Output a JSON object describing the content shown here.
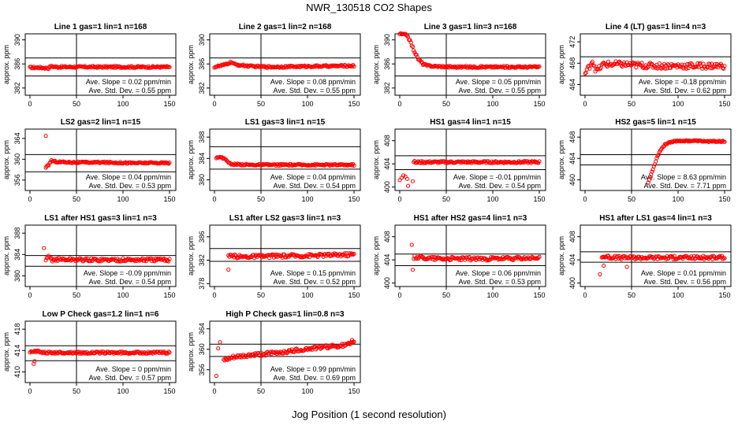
{
  "figure": {
    "title": "NWR_130518  CO2 Shapes",
    "xlabel": "Jog Position (1 second resolution)"
  },
  "chart_data": [
    {
      "type": "scatter",
      "title": "Line 1 gas=1 lin=1 n=168",
      "ylabel": "approx. ppm",
      "xlim": [
        0,
        150
      ],
      "xticks": [
        0,
        50,
        100,
        150
      ],
      "ylim": [
        380.8,
        391.0
      ],
      "yticks": [
        382,
        386,
        390
      ],
      "hlines": [
        387.0,
        384.0
      ],
      "vline": 50,
      "slope_text": "Ave. Slope =  0.02  ppm/min",
      "std_text": "Ave. Std. Dev. =  0.55  ppm",
      "color": "#ff0000",
      "series": [
        {
          "x": [
            0,
            10,
            20,
            22,
            30,
            50,
            70,
            90,
            110,
            130,
            150
          ],
          "y": [
            385.4,
            385.4,
            385.3,
            385.6,
            385.5,
            385.5,
            385.5,
            385.5,
            385.5,
            385.5,
            385.5
          ],
          "jitter": 0.15
        }
      ]
    },
    {
      "type": "scatter",
      "title": "Line 2 gas=1 lin=2 n=168",
      "ylabel": "approx. ppm",
      "xlim": [
        0,
        150
      ],
      "xticks": [
        0,
        50,
        100,
        150
      ],
      "ylim": [
        380.8,
        391.0
      ],
      "yticks": [
        382,
        386,
        390
      ],
      "hlines": [
        387.0,
        384.0
      ],
      "vline": 50,
      "slope_text": "Ave. Slope =  0.08  ppm/min",
      "std_text": "Ave. Std. Dev. =  0.55  ppm",
      "color": "#ff0000",
      "series": [
        {
          "x": [
            0,
            10,
            18,
            22,
            40,
            60,
            100,
            150
          ],
          "y": [
            385.5,
            385.8,
            386.3,
            385.9,
            385.6,
            385.5,
            385.6,
            385.7
          ],
          "jitter": 0.15
        }
      ]
    },
    {
      "type": "scatter",
      "title": "Line 3 gas=1 lin=3 n=168",
      "ylabel": "approx. ppm",
      "xlim": [
        0,
        150
      ],
      "xticks": [
        0,
        50,
        100,
        150
      ],
      "ylim": [
        380.8,
        391.0
      ],
      "yticks": [
        382,
        386,
        390
      ],
      "hlines": [
        387.0,
        384.0
      ],
      "vline": 50,
      "slope_text": "Ave. Slope =  0.05  ppm/min",
      "std_text": "Ave. Std. Dev. =  0.55  ppm",
      "color": "#ff0000",
      "series": [
        {
          "x": [
            0,
            8,
            12,
            16,
            20,
            25,
            30,
            40,
            60,
            100,
            150
          ],
          "y": [
            391.0,
            390.8,
            389.5,
            388.0,
            386.8,
            386.0,
            385.7,
            385.6,
            385.5,
            385.5,
            385.5
          ],
          "jitter": 0.15
        }
      ]
    },
    {
      "type": "scatter",
      "title": "Line 4 (LT) gas=1 lin=4 n=3",
      "ylabel": "approx. ppm",
      "xlim": [
        0,
        150
      ],
      "xticks": [
        0,
        50,
        100,
        150
      ],
      "ylim": [
        462.0,
        473.5
      ],
      "yticks": [
        464,
        468,
        472
      ],
      "hlines": [
        469.2,
        465.6
      ],
      "vline": 50,
      "slope_text": "Ave. Slope =  -0.18  ppm/min",
      "std_text": "Ave. Std. Dev. =  0.62  ppm",
      "color": "#ff0000",
      "series": [
        {
          "x": [
            0,
            4,
            8,
            12,
            20,
            40,
            60,
            80,
            100,
            120,
            150
          ],
          "y": [
            466.0,
            467.2,
            468.5,
            466.5,
            467.8,
            467.8,
            467.6,
            467.5,
            467.5,
            467.5,
            467.5
          ],
          "jitter": 0.55
        }
      ]
    },
    {
      "type": "scatter",
      "title": "LS2 gas=2 lin=1 n=15",
      "ylabel": "approx. ppm",
      "xlim": [
        0,
        150
      ],
      "xticks": [
        0,
        50,
        100,
        150
      ],
      "ylim": [
        354.0,
        365.8
      ],
      "yticks": [
        356,
        360,
        364
      ],
      "hlines": [
        360.9,
        357.6
      ],
      "vline": 50,
      "slope_text": "Ave. Slope =  0.04  ppm/min",
      "std_text": "Ave. Std. Dev. =  0.53  ppm",
      "color": "#ff0000",
      "series": [
        {
          "x": [
            17,
            19,
            21,
            23,
            25,
            30,
            50,
            80,
            110,
            150
          ],
          "y": [
            358.3,
            358.7,
            359.2,
            359.8,
            359.6,
            359.5,
            359.4,
            359.4,
            359.3,
            359.3
          ],
          "jitter": 0.15
        },
        {
          "x": [
            17
          ],
          "y": [
            364.5
          ],
          "jitter": 0
        }
      ]
    },
    {
      "type": "scatter",
      "title": "LS1 gas=3 lin=1 n=15",
      "ylabel": "approx. ppm",
      "xlim": [
        0,
        150
      ],
      "xticks": [
        0,
        50,
        100,
        150
      ],
      "ylim": [
        378.0,
        389.5
      ],
      "yticks": [
        380,
        384,
        388
      ],
      "hlines": [
        386.2,
        382.0
      ],
      "vline": 50,
      "slope_text": "Ave. Slope =  0.04  ppm/min",
      "std_text": "Ave. Std. Dev. =  0.54  ppm",
      "color": "#ff0000",
      "series": [
        {
          "x": [
            2,
            5,
            10,
            13,
            15,
            18,
            25,
            40,
            70,
            100,
            150
          ],
          "y": [
            384.2,
            384.3,
            384.0,
            383.8,
            383.2,
            382.9,
            382.9,
            382.8,
            382.8,
            382.8,
            382.8
          ],
          "jitter": 0.15
        }
      ]
    },
    {
      "type": "scatter",
      "title": "HS1 gas=4 lin=1 n=15",
      "ylabel": "approx. ppm",
      "xlim": [
        0,
        150
      ],
      "xticks": [
        0,
        50,
        100,
        150
      ],
      "ylim": [
        399.4,
        410.0
      ],
      "yticks": [
        400,
        404,
        408
      ],
      "hlines": [
        405.4,
        403.0
      ],
      "vline": 50,
      "slope_text": "Ave. Slope =  -0.01  ppm/min",
      "std_text": "Ave. Std. Dev. =  0.54  ppm",
      "color": "#ff0000",
      "series": [
        {
          "x": [
            15,
            18,
            20,
            30,
            60,
            100,
            150
          ],
          "y": [
            404.4,
            404.2,
            404.3,
            404.3,
            404.3,
            404.3,
            404.3
          ],
          "jitter": 0.18
        },
        {
          "x": [
            0,
            2,
            4,
            6,
            8,
            9,
            14
          ],
          "y": [
            401.2,
            401.6,
            402.0,
            401.8,
            401.4,
            400.2,
            401.0
          ],
          "jitter": 0
        }
      ]
    },
    {
      "type": "scatter",
      "title": "HS2 gas=5 lin=1 n=15",
      "ylabel": "approx. ppm",
      "xlim": [
        0,
        150
      ],
      "xticks": [
        0,
        50,
        100,
        150
      ],
      "ylim": [
        458.0,
        469.5
      ],
      "yticks": [
        460,
        464,
        468
      ],
      "hlines": [
        464.7,
        462.8
      ],
      "vline": 50,
      "slope_text": "Ave. Slope =  8.63  ppm/min",
      "std_text": "Ave. Std. Dev. =  7.71  ppm",
      "color": "#ff0000",
      "series": [
        {
          "x": [
            68,
            70,
            72,
            75,
            78,
            82,
            86,
            90,
            95,
            100,
            110,
            120,
            130,
            150
          ],
          "y": [
            459.5,
            460.5,
            461.5,
            463.0,
            464.5,
            465.8,
            466.6,
            467.0,
            467.2,
            467.3,
            467.3,
            467.3,
            467.2,
            467.2
          ],
          "jitter": 0.12
        }
      ]
    },
    {
      "type": "scatter",
      "title": "LS1 after HS1 gas=3 lin=1 n=3",
      "ylabel": "approx. ppm",
      "xlim": [
        0,
        150
      ],
      "xticks": [
        0,
        50,
        100,
        150
      ],
      "ylim": [
        378.0,
        389.5
      ],
      "yticks": [
        380,
        384,
        388
      ],
      "hlines": [
        383.8,
        381.8
      ],
      "vline": 50,
      "slope_text": "Ave. Slope =  -0.09  ppm/min",
      "std_text": "Ave. Std. Dev. =  0.54  ppm",
      "color": "#ff0000",
      "series": [
        {
          "x": [
            17,
            20,
            24,
            30,
            60,
            100,
            150
          ],
          "y": [
            382.8,
            383.6,
            383.0,
            383.1,
            383.0,
            383.0,
            383.0
          ],
          "jitter": 0.3
        },
        {
          "x": [
            15
          ],
          "y": [
            385.2
          ],
          "jitter": 0
        }
      ]
    },
    {
      "type": "scatter",
      "title": "LS1 after LS2 gas=3 lin=1 n=3",
      "ylabel": "approx. ppm",
      "xlim": [
        0,
        150
      ],
      "xticks": [
        0,
        50,
        100,
        150
      ],
      "ylim": [
        377.5,
        388.0
      ],
      "yticks": [
        378,
        382,
        386
      ],
      "hlines": [
        384.0,
        381.8
      ],
      "vline": 50,
      "slope_text": "Ave. Slope =  0.15  ppm/min",
      "std_text": "Ave. Std. Dev. =  0.52  ppm",
      "color": "#ff0000",
      "series": [
        {
          "x": [
            15,
            20,
            30,
            60,
            100,
            150
          ],
          "y": [
            382.6,
            382.7,
            382.6,
            382.7,
            382.8,
            383.0
          ],
          "jitter": 0.3
        },
        {
          "x": [
            15
          ],
          "y": [
            380.4
          ],
          "jitter": 0
        }
      ]
    },
    {
      "type": "scatter",
      "title": "HS1 after HS2 gas=4 lin=1 n=3",
      "ylabel": "approx. ppm",
      "xlim": [
        0,
        150
      ],
      "xticks": [
        0,
        50,
        100,
        150
      ],
      "ylim": [
        399.4,
        410.0
      ],
      "yticks": [
        400,
        404,
        408
      ],
      "hlines": [
        405.0,
        403.0
      ],
      "vline": 50,
      "slope_text": "Ave. Slope =  0.06  ppm/min",
      "std_text": "Ave. Std. Dev. =  0.53  ppm",
      "color": "#ff0000",
      "series": [
        {
          "x": [
            15,
            20,
            30,
            60,
            100,
            150
          ],
          "y": [
            404.4,
            404.5,
            404.3,
            404.2,
            404.2,
            404.3
          ],
          "jitter": 0.3
        },
        {
          "x": [
            13,
            14
          ],
          "y": [
            406.6,
            402.3
          ],
          "jitter": 0
        }
      ]
    },
    {
      "type": "scatter",
      "title": "HS1 after LS1 gas=4 lin=1 n=3",
      "ylabel": "approx. ppm",
      "xlim": [
        0,
        150
      ],
      "xticks": [
        0,
        50,
        100,
        150
      ],
      "ylim": [
        399.4,
        410.0
      ],
      "yticks": [
        400,
        404,
        408
      ],
      "hlines": [
        405.4,
        403.6
      ],
      "vline": 50,
      "slope_text": "Ave. Slope =  0.01  ppm/min",
      "std_text": "Ave. Std. Dev. =  0.56  ppm",
      "color": "#ff0000",
      "series": [
        {
          "x": [
            18,
            22,
            30,
            60,
            100,
            150
          ],
          "y": [
            404.5,
            404.6,
            404.4,
            404.4,
            404.4,
            404.4
          ],
          "jitter": 0.3
        },
        {
          "x": [
            16,
            20,
            45
          ],
          "y": [
            401.5,
            403.0,
            402.8
          ],
          "jitter": 0
        }
      ]
    },
    {
      "type": "scatter",
      "title": "Low P Check gas=1.2 lin=1 n=6",
      "ylabel": "approx. ppm",
      "xlim": [
        0,
        150
      ],
      "xticks": [
        0,
        50,
        100,
        150
      ],
      "ylim": [
        408.0,
        419.5
      ],
      "yticks": [
        410,
        414,
        418
      ],
      "hlines": [
        414.9,
        412.1
      ],
      "vline": 50,
      "slope_text": "Ave. Slope =  0  ppm/min",
      "std_text": "Ave. Std. Dev. =  0.57  ppm",
      "color": "#ff0000",
      "series": [
        {
          "x": [
            0,
            5,
            10,
            20,
            50,
            100,
            150
          ],
          "y": [
            413.6,
            413.9,
            413.8,
            413.6,
            413.6,
            413.6,
            413.6
          ],
          "jitter": 0.2
        },
        {
          "x": [
            4,
            5
          ],
          "y": [
            411.5,
            412.0
          ],
          "jitter": 0
        }
      ]
    },
    {
      "type": "scatter",
      "title": "High P Check gas=1 lin=0.8 n=3",
      "ylabel": "approx. ppm",
      "xlim": [
        0,
        150
      ],
      "xticks": [
        0,
        50,
        100,
        150
      ],
      "ylim": [
        353.5,
        365.5
      ],
      "yticks": [
        356,
        360,
        364
      ],
      "hlines": [
        361.0,
        358.6
      ],
      "vline": 50,
      "slope_text": "Ave. Slope =  0.99  ppm/min",
      "std_text": "Ave. Std. Dev. =  0.69  ppm",
      "color": "#ff0000",
      "series": [
        {
          "x": [
            10,
            20,
            40,
            60,
            80,
            100,
            120,
            140,
            150
          ],
          "y": [
            357.8,
            358.4,
            358.9,
            359.2,
            359.6,
            360.1,
            360.5,
            360.8,
            361.2
          ],
          "jitter": 0.35
        },
        {
          "x": [
            2,
            4,
            6,
            148
          ],
          "y": [
            354.8,
            360.2,
            361.4,
            361.8
          ],
          "jitter": 0
        }
      ]
    }
  ]
}
